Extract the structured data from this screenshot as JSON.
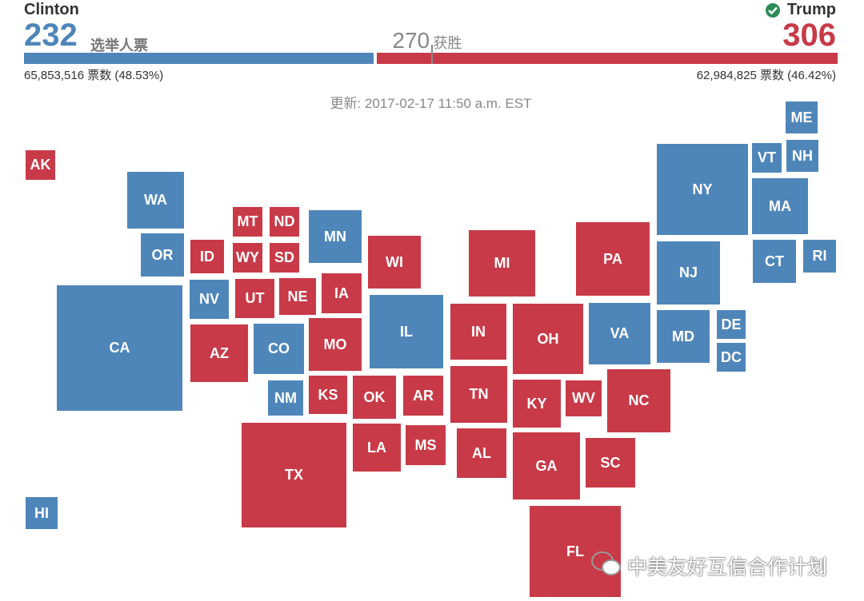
{
  "header": {
    "candidates": [
      {
        "name": "Clinton",
        "electoral_votes": 232,
        "electoral_label": "选举人票",
        "popular_vote": "65,853,516 票数 (48.53%)",
        "color": "#4f86b9"
      },
      {
        "name": "Trump",
        "electoral_votes": 306,
        "popular_vote": "62,984,825 票数 (46.42%)",
        "color": "#c83a48"
      }
    ],
    "threshold": {
      "value": 270,
      "label": "获胜"
    },
    "updated": "更新: 2017-02-17 11:50 a.m. EST"
  },
  "states": [
    {
      "label": "AK",
      "color": "#c83a48"
    },
    {
      "label": "WA",
      "color": "#4f86b9"
    },
    {
      "label": "OR",
      "color": "#4f86b9"
    },
    {
      "label": "ID",
      "color": "#c83a48"
    },
    {
      "label": "MT",
      "color": "#c83a48"
    },
    {
      "label": "ND",
      "color": "#c83a48"
    },
    {
      "label": "WY",
      "color": "#c83a48"
    },
    {
      "label": "SD",
      "color": "#c83a48"
    },
    {
      "label": "MN",
      "color": "#4f86b9"
    },
    {
      "label": "WI",
      "color": "#c83a48"
    },
    {
      "label": "NV",
      "color": "#4f86b9"
    },
    {
      "label": "UT",
      "color": "#c83a48"
    },
    {
      "label": "NE",
      "color": "#c83a48"
    },
    {
      "label": "IA",
      "color": "#c83a48"
    },
    {
      "label": "CA",
      "color": "#4f86b9"
    },
    {
      "label": "AZ",
      "color": "#c83a48"
    },
    {
      "label": "CO",
      "color": "#4f86b9"
    },
    {
      "label": "MO",
      "color": "#c83a48"
    },
    {
      "label": "IL",
      "color": "#4f86b9"
    },
    {
      "label": "IN",
      "color": "#c83a48"
    },
    {
      "label": "MI",
      "color": "#c83a48"
    },
    {
      "label": "OH",
      "color": "#c83a48"
    },
    {
      "label": "PA",
      "color": "#c83a48"
    },
    {
      "label": "NY",
      "color": "#4f86b9"
    },
    {
      "label": "VT",
      "color": "#4f86b9"
    },
    {
      "label": "NH",
      "color": "#4f86b9"
    },
    {
      "label": "ME",
      "color": "#4f86b9"
    },
    {
      "label": "MA",
      "color": "#4f86b9"
    },
    {
      "label": "CT",
      "color": "#4f86b9"
    },
    {
      "label": "RI",
      "color": "#4f86b9"
    },
    {
      "label": "NJ",
      "color": "#4f86b9"
    },
    {
      "label": "VA",
      "color": "#4f86b9"
    },
    {
      "label": "MD",
      "color": "#4f86b9"
    },
    {
      "label": "DE",
      "color": "#4f86b9"
    },
    {
      "label": "DC",
      "color": "#4f86b9"
    },
    {
      "label": "NM",
      "color": "#4f86b9"
    },
    {
      "label": "KS",
      "color": "#c83a48"
    },
    {
      "label": "OK",
      "color": "#c83a48"
    },
    {
      "label": "AR",
      "color": "#c83a48"
    },
    {
      "label": "TN",
      "color": "#c83a48"
    },
    {
      "label": "KY",
      "color": "#c83a48"
    },
    {
      "label": "WV",
      "color": "#c83a48"
    },
    {
      "label": "NC",
      "color": "#c83a48"
    },
    {
      "label": "LA",
      "color": "#c83a48"
    },
    {
      "label": "MS",
      "color": "#c83a48"
    },
    {
      "label": "AL",
      "color": "#c83a48"
    },
    {
      "label": "GA",
      "color": "#c83a48"
    },
    {
      "label": "SC",
      "color": "#c83a48"
    },
    {
      "label": "TX",
      "color": "#c83a48"
    },
    {
      "label": "FL",
      "color": "#c83a48"
    },
    {
      "label": "HI",
      "color": "#4f86b9"
    }
  ],
  "watermark": "中美友好互信合作计划"
}
